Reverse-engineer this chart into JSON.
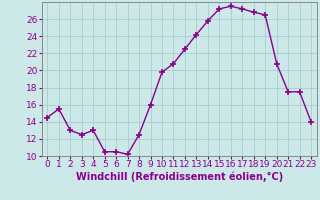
{
  "x": [
    0,
    1,
    2,
    3,
    4,
    5,
    6,
    7,
    8,
    9,
    10,
    11,
    12,
    13,
    14,
    15,
    16,
    17,
    18,
    19,
    20,
    21,
    22,
    23
  ],
  "y": [
    14.5,
    15.5,
    13.0,
    12.5,
    13.0,
    10.5,
    10.5,
    10.2,
    12.5,
    16.0,
    19.8,
    20.8,
    22.5,
    24.2,
    25.8,
    27.2,
    27.5,
    27.2,
    26.8,
    26.5,
    20.8,
    17.5,
    17.5,
    14.0
  ],
  "line_color": "#8B008B",
  "marker": "+",
  "marker_size": 4,
  "linewidth": 1.0,
  "xlabel": "Windchill (Refroidissement éolien,°C)",
  "xlim": [
    -0.5,
    23.5
  ],
  "ylim": [
    10,
    28
  ],
  "yticks": [
    10,
    12,
    14,
    16,
    18,
    20,
    22,
    24,
    26
  ],
  "xticks": [
    0,
    1,
    2,
    3,
    4,
    5,
    6,
    7,
    8,
    9,
    10,
    11,
    12,
    13,
    14,
    15,
    16,
    17,
    18,
    19,
    20,
    21,
    22,
    23
  ],
  "background_color": "#cce8e8",
  "grid_color": "#aacccc",
  "xlabel_fontsize": 7,
  "tick_fontsize": 6.5,
  "marker_color": "#8B008B",
  "spine_color": "#888888"
}
